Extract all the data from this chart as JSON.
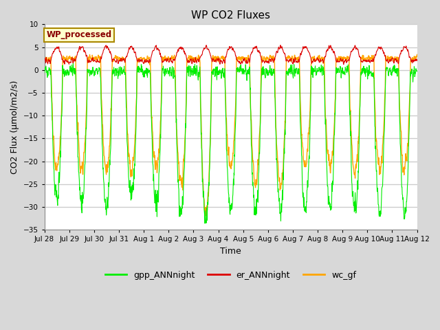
{
  "title": "WP CO2 Fluxes",
  "xlabel": "Time",
  "ylabel": "CO2 Flux (μmol/m2/s)",
  "ylim": [
    -35,
    10
  ],
  "yticks": [
    -35,
    -30,
    -25,
    -20,
    -15,
    -10,
    -5,
    0,
    5,
    10
  ],
  "plot_bg_color": "#ffffff",
  "fig_bg_color": "#d8d8d8",
  "grid_color": "#cccccc",
  "line_colors": {
    "gpp": "#00ee00",
    "er": "#dd0000",
    "wc": "#ffa500"
  },
  "line_widths": {
    "gpp": 0.8,
    "er": 0.8,
    "wc": 1.0
  },
  "legend_box_label": "WP_processed",
  "legend_box_bg": "#ffffcc",
  "legend_box_edge": "#aa8800",
  "legend_box_text_color": "#880000",
  "legend_items": [
    "gpp_ANNnight",
    "er_ANNnight",
    "wc_gf"
  ],
  "n_days": 15,
  "points_per_day": 96,
  "date_labels": [
    "Jul 28",
    "Jul 29",
    "Jul 30",
    "Jul 31",
    "Aug 1",
    "Aug 2",
    "Aug 3",
    "Aug 4",
    "Aug 5",
    "Aug 6",
    "Aug 7",
    "Aug 8",
    "Aug 9",
    "Aug 10",
    "Aug 11",
    "Aug 12"
  ]
}
